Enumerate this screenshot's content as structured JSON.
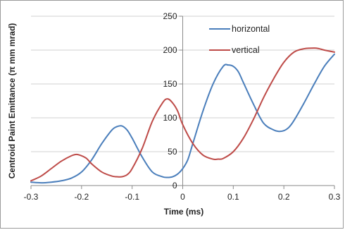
{
  "chart_data": {
    "type": "line",
    "xlabel": "Time (ms)",
    "ylabel": "Centroid Paint Emittance (π mm mrad)",
    "xlim": [
      -0.3,
      0.3
    ],
    "ylim": [
      0,
      250
    ],
    "x_ticks": [
      "-0.3",
      "-0.2",
      "-0.1",
      "0",
      "0.1",
      "0.2",
      "0.3"
    ],
    "y_ticks": [
      "0",
      "50",
      "100",
      "150",
      "200",
      "250"
    ],
    "grid": "horizontal",
    "legend_position": "top-right",
    "series": [
      {
        "name": "horizontal",
        "color": "#4a7ebb",
        "x": [
          -0.3,
          -0.28,
          -0.26,
          -0.24,
          -0.22,
          -0.2,
          -0.18,
          -0.16,
          -0.14,
          -0.13,
          -0.12,
          -0.11,
          -0.1,
          -0.08,
          -0.06,
          -0.04,
          -0.03,
          -0.02,
          -0.01,
          0.0,
          0.01,
          0.02,
          0.04,
          0.06,
          0.08,
          0.09,
          0.1,
          0.11,
          0.12,
          0.14,
          0.16,
          0.18,
          0.19,
          0.2,
          0.21,
          0.22,
          0.24,
          0.26,
          0.28,
          0.3
        ],
        "y": [
          5,
          4,
          5,
          7,
          11,
          20,
          38,
          62,
          82,
          87,
          88,
          82,
          70,
          42,
          20,
          13,
          12,
          13,
          17,
          25,
          38,
          62,
          110,
          150,
          176,
          178,
          176,
          168,
          152,
          120,
          92,
          82,
          80,
          81,
          86,
          96,
          122,
          150,
          176,
          194
        ]
      },
      {
        "name": "vertical",
        "color": "#be4b48",
        "x": [
          -0.3,
          -0.28,
          -0.26,
          -0.24,
          -0.22,
          -0.21,
          -0.2,
          -0.19,
          -0.18,
          -0.16,
          -0.14,
          -0.13,
          -0.12,
          -0.11,
          -0.1,
          -0.08,
          -0.06,
          -0.04,
          -0.03,
          -0.02,
          -0.01,
          0.0,
          0.02,
          0.04,
          0.06,
          0.07,
          0.08,
          0.1,
          0.12,
          0.14,
          0.16,
          0.18,
          0.2,
          0.22,
          0.24,
          0.26,
          0.27,
          0.28,
          0.3
        ],
        "y": [
          7,
          14,
          25,
          36,
          44,
          46,
          44,
          40,
          32,
          20,
          14,
          13,
          13,
          16,
          25,
          55,
          95,
          122,
          128,
          122,
          110,
          90,
          62,
          45,
          39,
          39,
          40,
          50,
          70,
          98,
          130,
          158,
          182,
          197,
          202,
          203,
          202,
          200,
          197
        ]
      }
    ]
  }
}
